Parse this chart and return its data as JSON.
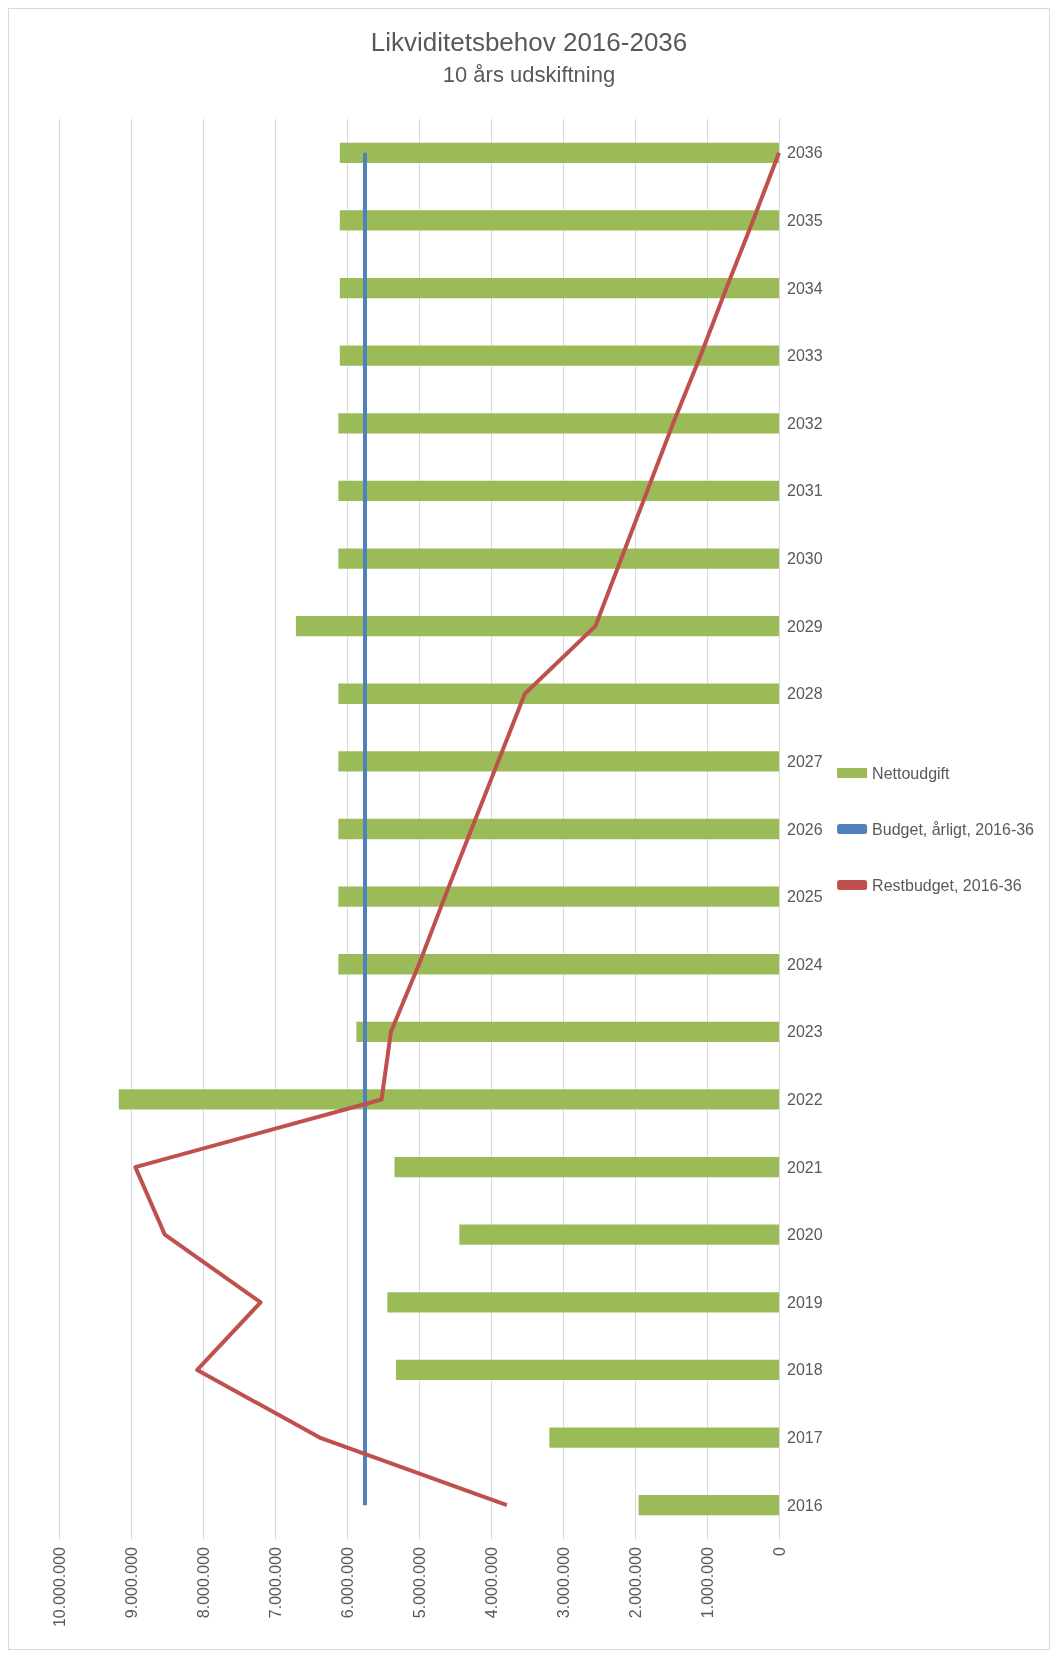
{
  "chart_data": {
    "type": "bar",
    "orientation": "horizontal",
    "title": "Likviditetsbehov 2016-2036",
    "subtitle": "10 års udskiftning",
    "categories": [
      "2036",
      "2035",
      "2034",
      "2033",
      "2032",
      "2031",
      "2030",
      "2029",
      "2028",
      "2027",
      "2026",
      "2025",
      "2024",
      "2023",
      "2022",
      "2021",
      "2020",
      "2019",
      "2018",
      "2017",
      "2016"
    ],
    "series": [
      {
        "name": "Nettoudgift",
        "color": "#9bbb59",
        "values": [
          6100000,
          6100000,
          6100000,
          6100000,
          6120000,
          6120000,
          6120000,
          6710000,
          6120000,
          6120000,
          6120000,
          6120000,
          6120000,
          5870000,
          9170000,
          5340000,
          4440000,
          5440000,
          5320000,
          3190000,
          1950000
        ]
      },
      {
        "name": "Budget, årligt, 2016-36",
        "type": "line",
        "color": "#4f81bd",
        "values": [
          5750000,
          5750000,
          5750000,
          5750000,
          5750000,
          5750000,
          5750000,
          5750000,
          5750000,
          5750000,
          5750000,
          5750000,
          5750000,
          5750000,
          5750000,
          5750000,
          5750000,
          5750000,
          5750000,
          5750000,
          5750000
        ]
      },
      {
        "name": "Restbudget, 2016-36",
        "type": "line",
        "color": "#c0504d",
        "values": [
          0,
          360000,
          730000,
          1090000,
          1470000,
          1830000,
          2190000,
          2550000,
          3530000,
          3900000,
          4270000,
          4640000,
          5000000,
          5390000,
          5520000,
          8940000,
          8530000,
          7200000,
          8080000,
          6380000,
          3780000
        ]
      }
    ],
    "xlim": [
      10000000,
      0
    ],
    "xticks": [
      {
        "value": 10000000,
        "label": "10.000.000"
      },
      {
        "value": 9000000,
        "label": "9.000.000"
      },
      {
        "value": 8000000,
        "label": "8.000.000"
      },
      {
        "value": 7000000,
        "label": "7.000.000"
      },
      {
        "value": 6000000,
        "label": "6.000.000"
      },
      {
        "value": 5000000,
        "label": "5.000.000"
      },
      {
        "value": 4000000,
        "label": "4.000.000"
      },
      {
        "value": 3000000,
        "label": "3.000.000"
      },
      {
        "value": 2000000,
        "label": "2.000.000"
      },
      {
        "value": 1000000,
        "label": "1.000.000"
      },
      {
        "value": 0,
        "label": "0"
      }
    ],
    "grid": true,
    "legend": "right",
    "marker": "none"
  }
}
